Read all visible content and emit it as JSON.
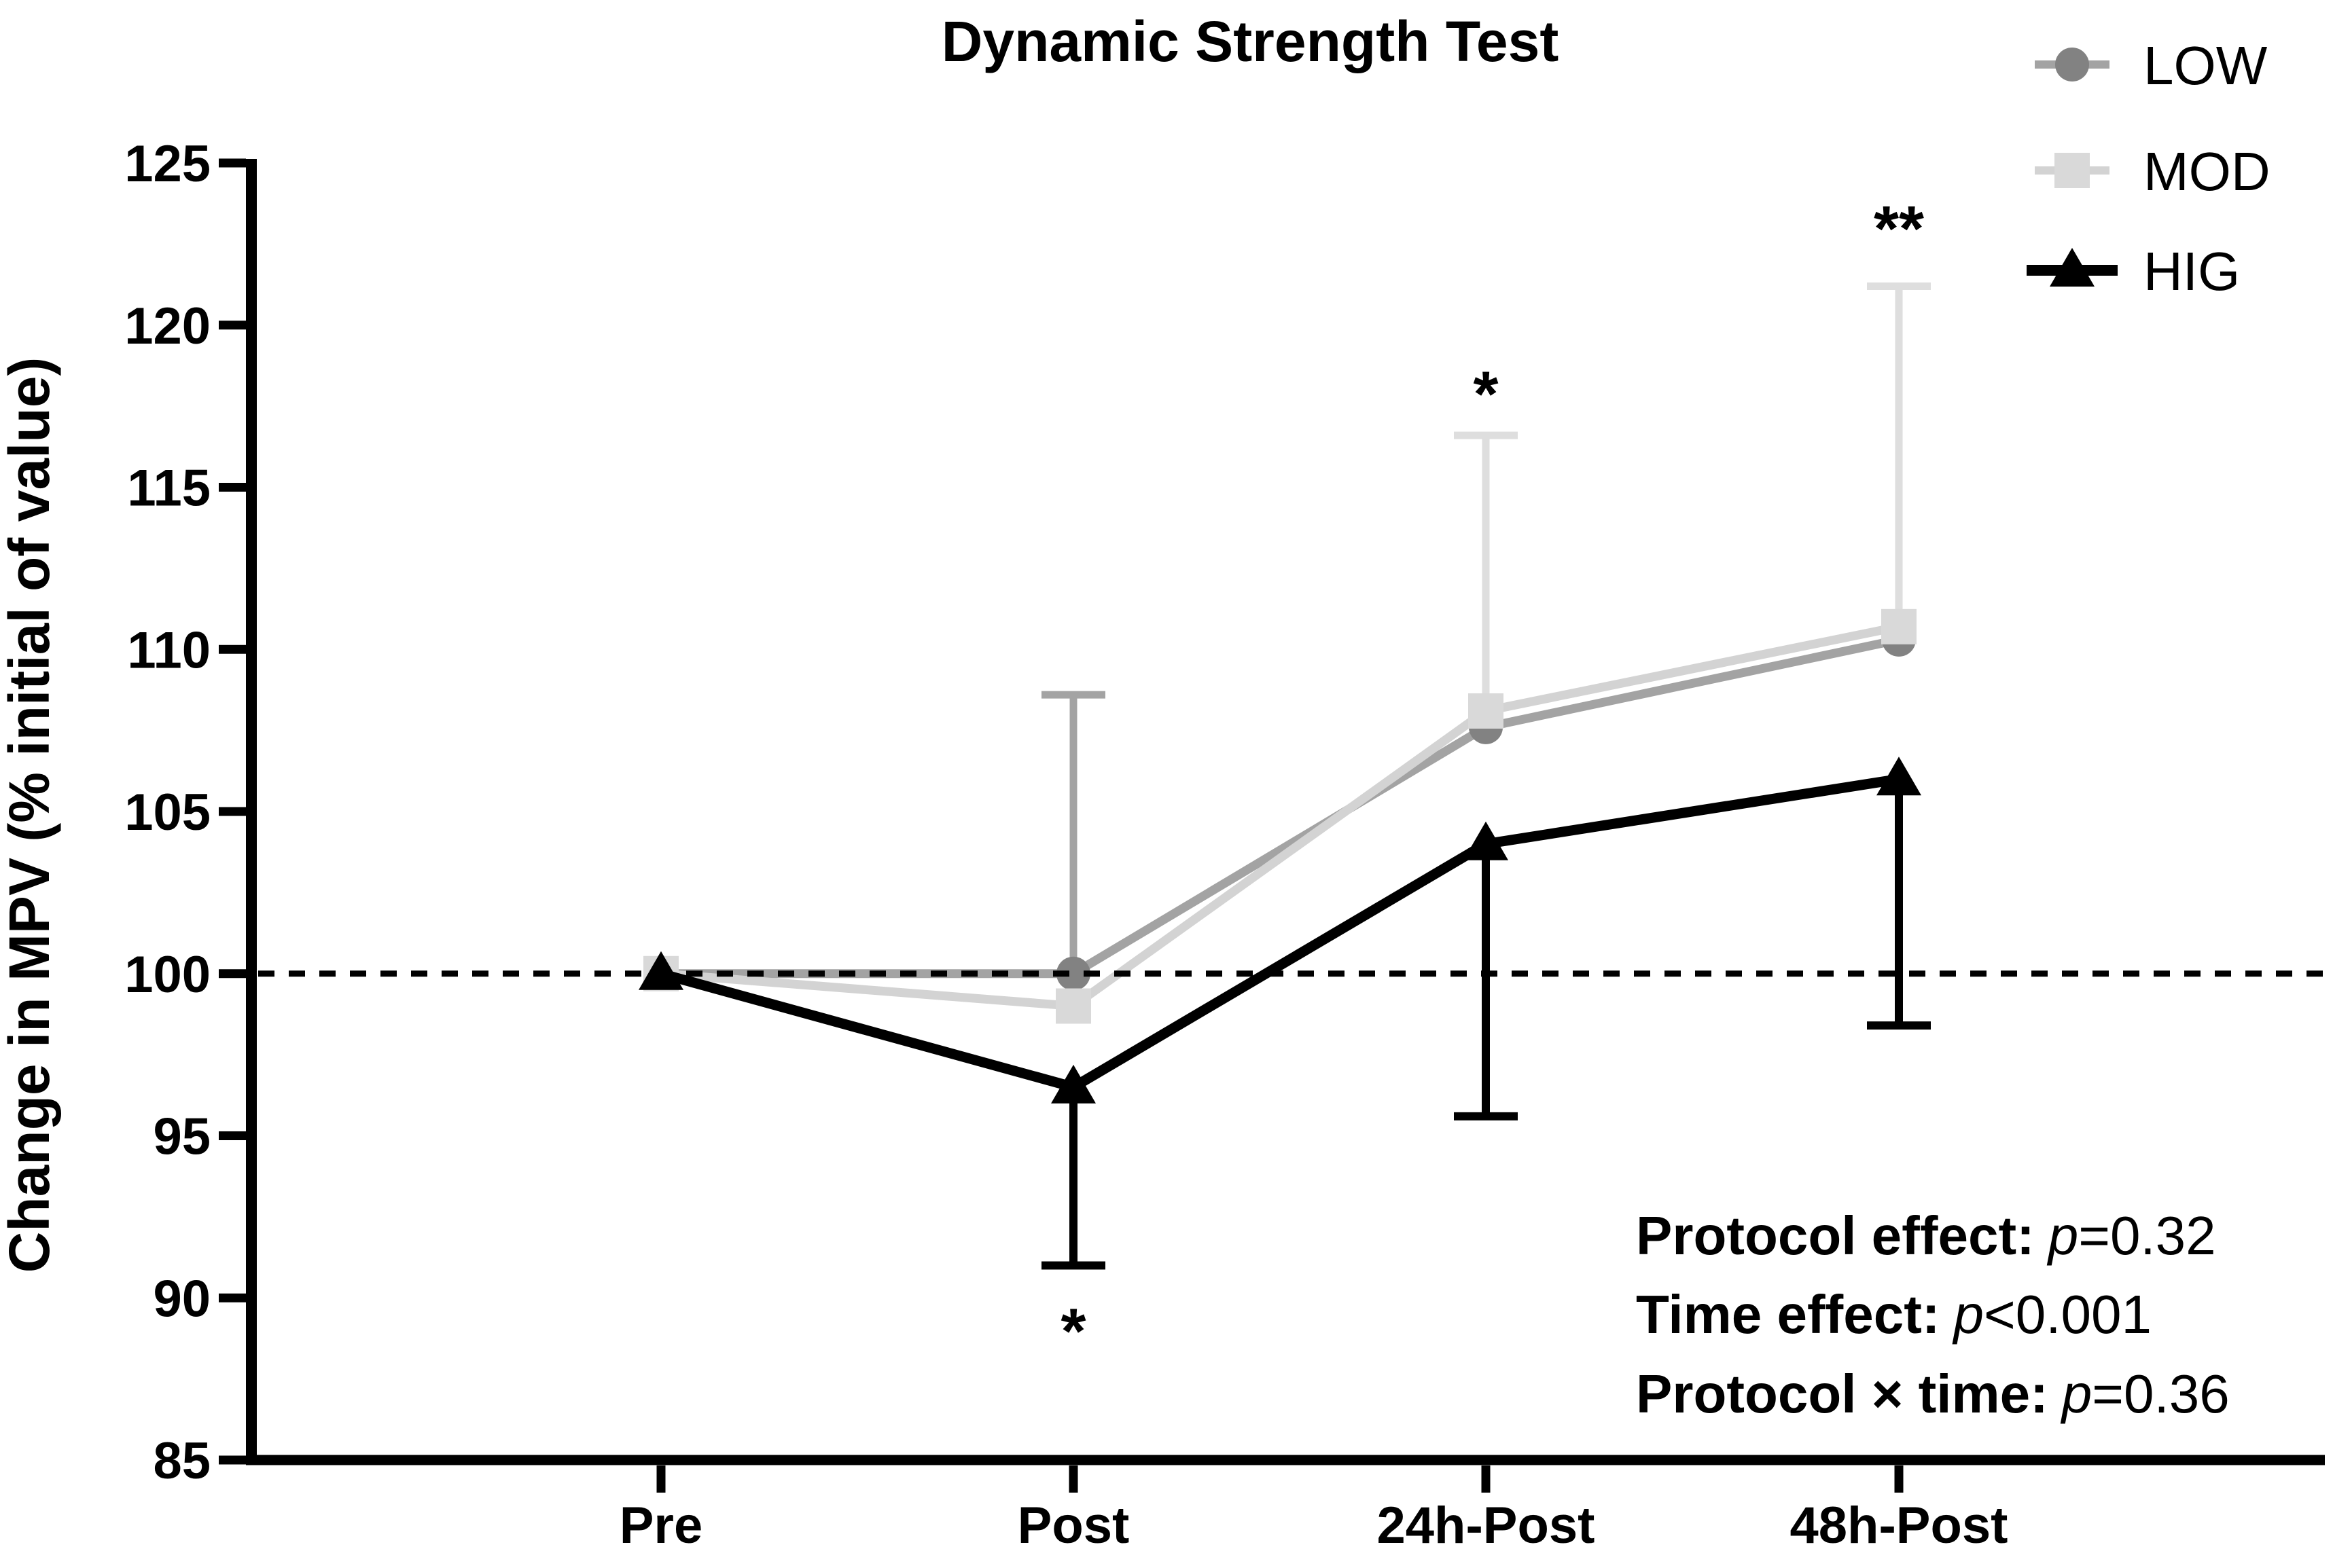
{
  "title": "Dynamic Strength Test",
  "chart_data": {
    "type": "line",
    "title": "Dynamic Strength Test",
    "ylabel": "Change in MPV (% initial of value)",
    "categories": [
      "Pre",
      "Post",
      "24h-Post",
      "48h-Post"
    ],
    "ylim": [
      85,
      125
    ],
    "yticks": [
      85,
      90,
      95,
      100,
      105,
      110,
      115,
      120,
      125
    ],
    "reference_line_y": 100,
    "grid": false,
    "legend_position": "top-right",
    "series": [
      {
        "name": "LOW",
        "marker": "circle",
        "marker_color": "#828282",
        "line_color": "#a3a3a3",
        "values": [
          100,
          100,
          107.6,
          110.3
        ],
        "error_up": [
          null,
          8.6,
          null,
          null
        ],
        "error_down": [
          null,
          null,
          null,
          null
        ]
      },
      {
        "name": "MOD",
        "marker": "square",
        "marker_color": "#d9d9d9",
        "line_color": "#d3d3d3",
        "values": [
          100,
          99.0,
          108.1,
          110.7
        ],
        "error_up": [
          null,
          null,
          8.5,
          10.5
        ],
        "error_down": [
          null,
          null,
          null,
          null
        ]
      },
      {
        "name": "HIG",
        "marker": "triangle",
        "marker_color": "#000000",
        "line_color": "#000000",
        "values": [
          100,
          96.5,
          104.0,
          106.0
        ],
        "error_up": [
          null,
          null,
          null,
          null
        ],
        "error_down": [
          null,
          5.5,
          8.4,
          7.6
        ]
      }
    ],
    "annotations": [
      {
        "text": "*",
        "category": "Post",
        "value": 89.3,
        "placement": "below"
      },
      {
        "text": "*",
        "category": "24h-Post",
        "value": 118.2,
        "placement": "above"
      },
      {
        "text": "**",
        "category": "48h-Post",
        "value": 123.3,
        "placement": "above"
      }
    ]
  },
  "stats": [
    {
      "label": "Protocol effect:",
      "p_symbol": "p",
      "value": "=0.32"
    },
    {
      "label": "Time effect:",
      "p_symbol": "p",
      "value": "<0.001"
    },
    {
      "label": "Protocol × time:",
      "p_symbol": "p",
      "value": "=0.36"
    }
  ],
  "colors": {
    "axis": "#000000",
    "reference_line": "#000000",
    "background": "#ffffff"
  }
}
